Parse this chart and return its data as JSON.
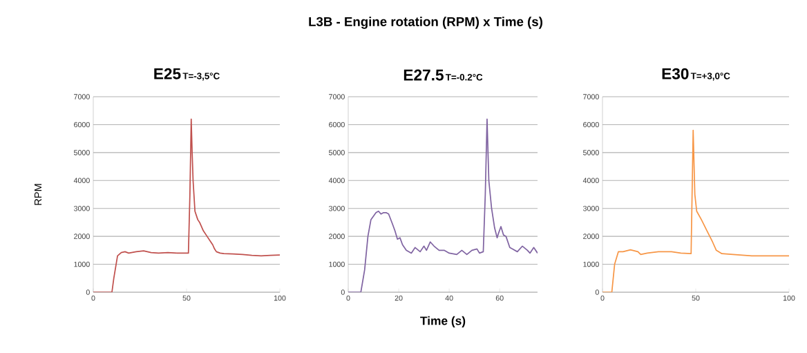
{
  "chart_data": [
    {
      "type": "line",
      "title": "E25",
      "subtitle": "T=-3,5°C",
      "ylabel": "RPM",
      "annotations": [
        "L3B - Engine rotation (RPM) x Time (s)"
      ],
      "grid": "y",
      "marker": "none",
      "line_style": "solid",
      "xlim": [
        0,
        100
      ],
      "xticks": [
        0,
        50,
        100
      ],
      "ylim": [
        0,
        7000
      ],
      "yticks": [
        0,
        1000,
        2000,
        3000,
        4000,
        5000,
        6000,
        7000
      ],
      "series": [
        {
          "color": "#c0504d",
          "x": [
            0,
            10,
            11,
            13,
            15,
            17,
            19,
            23,
            27,
            31,
            35,
            40,
            45,
            51,
            51.8,
            52.5,
            53,
            53.5,
            54.5,
            56,
            57,
            59,
            61,
            63,
            64,
            65,
            66,
            68,
            70,
            75,
            80,
            85,
            90,
            95,
            100
          ],
          "values": [
            0,
            0,
            500,
            1300,
            1420,
            1450,
            1400,
            1450,
            1480,
            1420,
            1400,
            1420,
            1400,
            1400,
            3500,
            6200,
            5000,
            4000,
            2900,
            2600,
            2500,
            2200,
            2000,
            1800,
            1700,
            1550,
            1450,
            1400,
            1380,
            1370,
            1350,
            1320,
            1300,
            1320,
            1330
          ]
        }
      ]
    },
    {
      "type": "line",
      "title": "E27.5",
      "subtitle": "T=-0.2°C",
      "xlabel": "Time (s)",
      "grid": "y",
      "marker": "none",
      "line_style": "solid",
      "xlim": [
        0,
        75
      ],
      "xticks": [
        0,
        20,
        40,
        60
      ],
      "ylim": [
        0,
        7000
      ],
      "yticks": [
        0,
        1000,
        2000,
        3000,
        4000,
        5000,
        6000,
        7000
      ],
      "series": [
        {
          "color": "#8064a2",
          "x": [
            0,
            5,
            6.5,
            7.8,
            9,
            11,
            12,
            13,
            14,
            15,
            16,
            17.5,
            18.5,
            19.5,
            20.5,
            21.5,
            23,
            25,
            26.5,
            28.5,
            30,
            31,
            32.5,
            34,
            36,
            38,
            40,
            43,
            45,
            47,
            49,
            51,
            52,
            53.5,
            54.3,
            55,
            55.7,
            56.8,
            58,
            59,
            59.5,
            60.5,
            61.5,
            62.5,
            64,
            65,
            67,
            69,
            71,
            72,
            73.5,
            75
          ],
          "values": [
            0,
            0,
            800,
            2000,
            2600,
            2850,
            2900,
            2800,
            2850,
            2850,
            2800,
            2450,
            2200,
            1900,
            1950,
            1700,
            1500,
            1400,
            1600,
            1450,
            1650,
            1500,
            1800,
            1650,
            1500,
            1500,
            1400,
            1350,
            1500,
            1350,
            1500,
            1550,
            1400,
            1450,
            3500,
            6200,
            4000,
            3000,
            2300,
            1950,
            2100,
            2350,
            2050,
            2000,
            1600,
            1550,
            1450,
            1650,
            1500,
            1400,
            1600,
            1400
          ]
        }
      ]
    },
    {
      "type": "line",
      "title": "E30",
      "subtitle": "T=+3,0°C",
      "grid": "y",
      "marker": "none",
      "line_style": "solid",
      "xlim": [
        0,
        100
      ],
      "xticks": [
        0,
        50,
        100
      ],
      "ylim": [
        0,
        7000
      ],
      "yticks": [
        0,
        1000,
        2000,
        3000,
        4000,
        5000,
        6000,
        7000
      ],
      "series": [
        {
          "color": "#f79646",
          "x": [
            0,
            5,
            6.5,
            8.5,
            11,
            15,
            19,
            20.5,
            24,
            30,
            37,
            42,
            47.5,
            48.6,
            49.5,
            50.5,
            53,
            56,
            59,
            61,
            64,
            70,
            80,
            90,
            100
          ],
          "values": [
            0,
            0,
            1000,
            1450,
            1450,
            1520,
            1450,
            1350,
            1400,
            1450,
            1450,
            1400,
            1380,
            5800,
            3500,
            2900,
            2600,
            2200,
            1800,
            1500,
            1380,
            1350,
            1300,
            1300,
            1300
          ]
        }
      ]
    }
  ]
}
